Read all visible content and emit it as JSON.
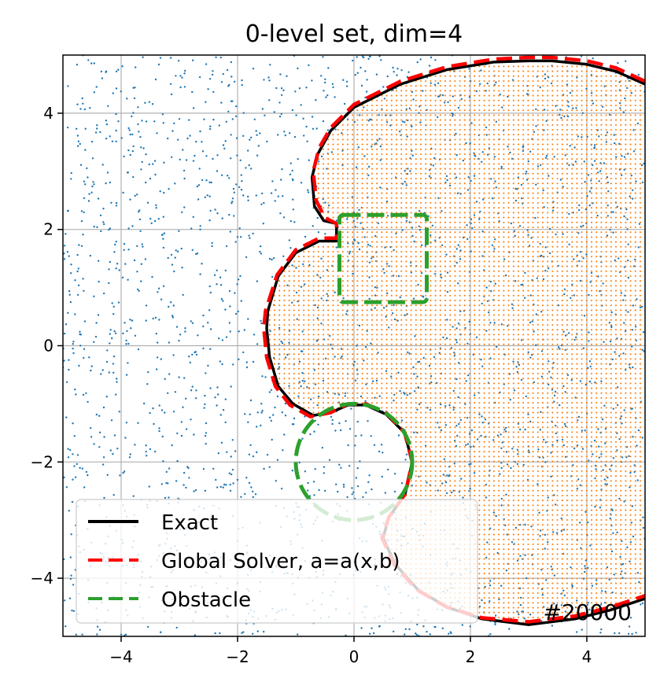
{
  "chart_data": {
    "type": "scatter",
    "title": "0-level set, dim=4",
    "xlabel": "",
    "ylabel": "",
    "xlim": [
      -5,
      5
    ],
    "ylim": [
      -5,
      5
    ],
    "xticks": [
      -4,
      -2,
      0,
      2,
      4
    ],
    "yticks": [
      -4,
      -2,
      0,
      2,
      4
    ],
    "xtick_labels": [
      "−4",
      "−2",
      "0",
      "2",
      "4"
    ],
    "ytick_labels": [
      "−4",
      "−2",
      "0",
      "2",
      "4"
    ],
    "grid": true,
    "annotation": "#20000",
    "legend": {
      "placement": "lower-left",
      "entries": [
        {
          "label": "Exact",
          "color": "#000000",
          "style": "solid"
        },
        {
          "label": "Global Solver, a=a(x,b)",
          "color": "#ff0000",
          "style": "dashed"
        },
        {
          "label": "Obstacle",
          "color": "#2ca02c",
          "style": "dashed"
        }
      ]
    },
    "colors": {
      "samples": "#1f77b4",
      "region": "#ff7f0e",
      "exact": "#000000",
      "solver": "#ff0000",
      "obstacle": "#2ca02c"
    },
    "curves": {
      "exact": [
        [
          5.0,
          4.5
        ],
        [
          4.5,
          4.72
        ],
        [
          4.0,
          4.84
        ],
        [
          3.4,
          4.9
        ],
        [
          3.0,
          4.9
        ],
        [
          2.4,
          4.88
        ],
        [
          1.6,
          4.75
        ],
        [
          0.8,
          4.5
        ],
        [
          0.0,
          4.1
        ],
        [
          -0.4,
          3.7
        ],
        [
          -0.62,
          3.3
        ],
        [
          -0.72,
          2.9
        ],
        [
          -0.68,
          2.4
        ],
        [
          -0.52,
          2.15
        ],
        [
          -0.3,
          2.1
        ],
        [
          -0.3,
          1.8
        ],
        [
          -0.6,
          1.8
        ],
        [
          -1.0,
          1.6
        ],
        [
          -1.3,
          1.2
        ],
        [
          -1.48,
          0.6
        ],
        [
          -1.5,
          0.3
        ],
        [
          -1.45,
          -0.2
        ],
        [
          -1.3,
          -0.7
        ],
        [
          -1.05,
          -1.0
        ],
        [
          -0.7,
          -1.2
        ],
        [
          -0.4,
          -1.15
        ],
        [
          -0.1,
          -1.02
        ],
        [
          0.2,
          -1.02
        ],
        [
          0.55,
          -1.18
        ],
        [
          0.87,
          -1.5
        ],
        [
          1.0,
          -2.0
        ],
        [
          0.88,
          -2.55
        ],
        [
          0.6,
          -2.95
        ],
        [
          0.5,
          -3.3
        ],
        [
          0.7,
          -3.75
        ],
        [
          1.1,
          -4.2
        ],
        [
          1.6,
          -4.5
        ],
        [
          2.2,
          -4.7
        ],
        [
          3.0,
          -4.8
        ],
        [
          3.8,
          -4.7
        ],
        [
          4.4,
          -4.55
        ],
        [
          5.0,
          -4.35
        ]
      ],
      "solver": [
        [
          5.0,
          4.55
        ],
        [
          4.5,
          4.78
        ],
        [
          4.0,
          4.9
        ],
        [
          3.4,
          4.96
        ],
        [
          3.0,
          4.96
        ],
        [
          2.4,
          4.93
        ],
        [
          1.6,
          4.8
        ],
        [
          0.8,
          4.55
        ],
        [
          0.0,
          4.15
        ],
        [
          -0.4,
          3.75
        ],
        [
          -0.6,
          3.4
        ],
        [
          -0.7,
          3.0
        ],
        [
          -0.65,
          2.5
        ],
        [
          -0.5,
          2.2
        ],
        [
          -0.3,
          2.1
        ],
        [
          -0.3,
          1.85
        ],
        [
          -0.6,
          1.85
        ],
        [
          -1.0,
          1.65
        ],
        [
          -1.32,
          1.22
        ],
        [
          -1.52,
          0.6
        ],
        [
          -1.55,
          0.3
        ],
        [
          -1.5,
          -0.2
        ],
        [
          -1.35,
          -0.7
        ],
        [
          -1.1,
          -1.02
        ],
        [
          -0.75,
          -1.22
        ],
        [
          -0.4,
          -1.15
        ],
        [
          -0.1,
          -1.0
        ],
        [
          0.2,
          -1.0
        ],
        [
          0.55,
          -1.15
        ],
        [
          0.87,
          -1.5
        ],
        [
          1.0,
          -2.0
        ],
        [
          0.88,
          -2.55
        ],
        [
          0.6,
          -2.95
        ],
        [
          0.48,
          -3.3
        ],
        [
          0.68,
          -3.75
        ],
        [
          1.08,
          -4.2
        ],
        [
          1.6,
          -4.5
        ],
        [
          2.2,
          -4.68
        ],
        [
          3.0,
          -4.75
        ],
        [
          3.8,
          -4.65
        ],
        [
          4.4,
          -4.5
        ],
        [
          5.0,
          -4.3
        ]
      ]
    },
    "obstacle": {
      "rectangle": {
        "x": [
          -0.25,
          1.25
        ],
        "y": [
          0.75,
          2.25
        ]
      },
      "circle": {
        "center": [
          0,
          -2
        ],
        "radius": 1
      }
    }
  }
}
